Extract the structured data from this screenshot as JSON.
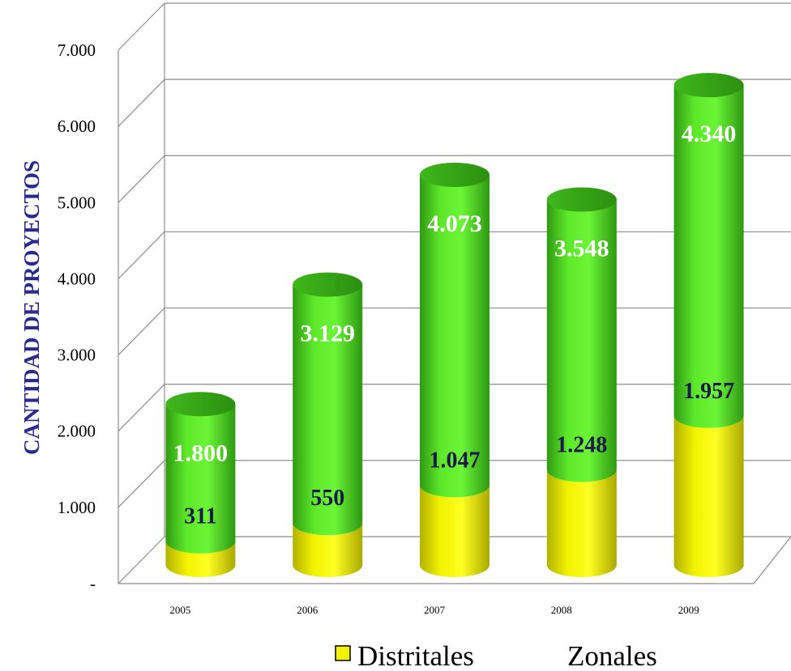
{
  "chart_data": {
    "type": "bar",
    "stacked": true,
    "style": "3d-cylinder",
    "categories": [
      "2005",
      "2006",
      "2007",
      "2008",
      "2009"
    ],
    "series": [
      {
        "name": "Distritales",
        "values": [
          311,
          550,
          1047,
          1248,
          1957
        ],
        "labels": [
          "311",
          "550",
          "1.047",
          "1.248",
          "1.957"
        ],
        "color": "#f2f200"
      },
      {
        "name": "Zonales",
        "values": [
          1800,
          3129,
          4073,
          3548,
          4340
        ],
        "labels": [
          "1.800",
          "3.129",
          "4.073",
          "3.548",
          "4.340"
        ],
        "color": "#55dd22"
      }
    ],
    "yticks": [
      "-",
      "1.000",
      "2.000",
      "3.000",
      "4.000",
      "5.000",
      "6.000",
      "7.000"
    ],
    "ylim": [
      0,
      7000
    ],
    "ylabel": "CANTIDAD DE PROYECTOS",
    "xlabel": "",
    "grid": true,
    "legend_position": "bottom"
  }
}
